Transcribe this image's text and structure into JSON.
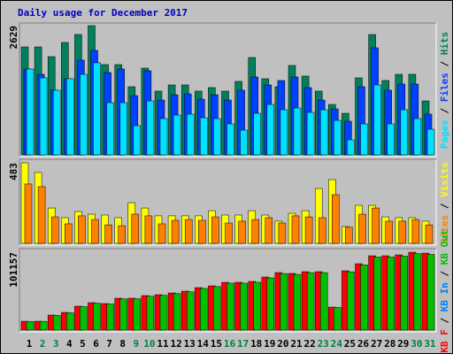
{
  "title": "Daily usage for December 2017",
  "legend_separator": " / ",
  "categories": [
    "1",
    "2",
    "3",
    "4",
    "5",
    "6",
    "7",
    "8",
    "9",
    "10",
    "11",
    "12",
    "13",
    "14",
    "15",
    "16",
    "17",
    "18",
    "19",
    "20",
    "21",
    "22",
    "23",
    "24",
    "25",
    "26",
    "27",
    "28",
    "29",
    "30",
    "31"
  ],
  "category_colors": [
    "#000000",
    "#008040",
    "#008040",
    "#000000",
    "#000000",
    "#000000",
    "#000000",
    "#000000",
    "#008040",
    "#008040",
    "#000000",
    "#000000",
    "#000000",
    "#000000",
    "#000000",
    "#008040",
    "#008040",
    "#000000",
    "#000000",
    "#000000",
    "#000000",
    "#000000",
    "#008040",
    "#008040",
    "#000000",
    "#000000",
    "#000000",
    "#000000",
    "#000000",
    "#008040",
    "#008040"
  ],
  "chart_data": [
    {
      "type": "bar",
      "ylim": [
        0,
        2629
      ],
      "yticks": [
        2629
      ],
      "legend_reversed": true,
      "series": [
        {
          "name": "Hits",
          "color": "#00805c",
          "values": [
            2197,
            2197,
            1999,
            2287,
            2449,
            2629,
            1837,
            1837,
            1387,
            1765,
            1297,
            1423,
            1423,
            1297,
            1369,
            1297,
            1495,
            1981,
            1549,
            1387,
            1819,
            1603,
            1297,
            1026,
            846,
            1567,
            2449,
            1513,
            1639,
            1639,
            1098
          ]
        },
        {
          "name": "Files",
          "color": "#0040ff",
          "values": [
            1747,
            1639,
            1315,
            1549,
            1927,
            2125,
            1675,
            1747,
            1206,
            1711,
            1116,
            1224,
            1242,
            1134,
            1224,
            1116,
            1315,
            1585,
            1423,
            1513,
            1585,
            1369,
            1116,
            936,
            684,
            1387,
            2179,
            1315,
            1441,
            1441,
            828
          ]
        },
        {
          "name": "Pages",
          "color": "#00e0ff",
          "values": [
            1747,
            1567,
            1315,
            1549,
            1639,
            1873,
            1062,
            1062,
            594,
            1098,
            738,
            810,
            828,
            756,
            738,
            630,
            504,
            846,
            1026,
            918,
            954,
            864,
            918,
            702,
            306,
            630,
            1423,
            630,
            918,
            738,
            522
          ]
        }
      ]
    },
    {
      "type": "bar",
      "ylim": [
        0,
        483
      ],
      "yticks": [
        483
      ],
      "legend_reversed": true,
      "series": [
        {
          "name": "Visits",
          "color": "#ffff00",
          "values": [
            483,
            425,
            212,
            154,
            191,
            175,
            170,
            154,
            244,
            212,
            165,
            165,
            165,
            165,
            196,
            170,
            170,
            196,
            170,
            133,
            180,
            196,
            329,
            382,
            101,
            228,
            228,
            159,
            154,
            154,
            133
          ]
        },
        {
          "name": "Sites",
          "color": "#ff8000",
          "values": [
            356,
            340,
            159,
            117,
            165,
            143,
            111,
            106,
            175,
            165,
            117,
            138,
            143,
            138,
            159,
            122,
            133,
            143,
            154,
            122,
            165,
            159,
            154,
            292,
            96,
            175,
            212,
            133,
            133,
            143,
            111
          ]
        }
      ]
    },
    {
      "type": "bar",
      "ylim": [
        0,
        101157
      ],
      "yticks": [
        101157
      ],
      "legend_reversed": false,
      "series": [
        {
          "name": "KB F",
          "color": "#ff0000",
          "values": [
            11495,
            11495,
            19542,
            22990,
            31037,
            35635,
            34485,
            41382,
            41382,
            44831,
            45980,
            48279,
            50578,
            55176,
            57475,
            62073,
            62073,
            63223,
            68970,
            74718,
            73568,
            75867,
            75867,
            29887,
            77017,
            86213,
            96558,
            96558,
            97708,
            101157,
            100007
          ]
        },
        {
          "name": "KB In",
          "color": "#0080ff",
          "values": [
            0,
            0,
            0,
            0,
            0,
            0,
            0,
            0,
            0,
            0,
            0,
            0,
            0,
            0,
            0,
            0,
            0,
            0,
            0,
            0,
            0,
            0,
            0,
            0,
            0,
            0,
            0,
            0,
            0,
            0,
            0
          ]
        },
        {
          "name": "KB Out",
          "color": "#00c000",
          "values": [
            11200,
            11300,
            19100,
            22500,
            30500,
            35000,
            33900,
            40600,
            40700,
            44000,
            45200,
            47400,
            49700,
            54200,
            56500,
            61000,
            61000,
            62100,
            67800,
            73400,
            72300,
            74600,
            74600,
            29400,
            75700,
            84700,
            94900,
            94900,
            96000,
            99400,
            98300
          ]
        }
      ]
    }
  ]
}
